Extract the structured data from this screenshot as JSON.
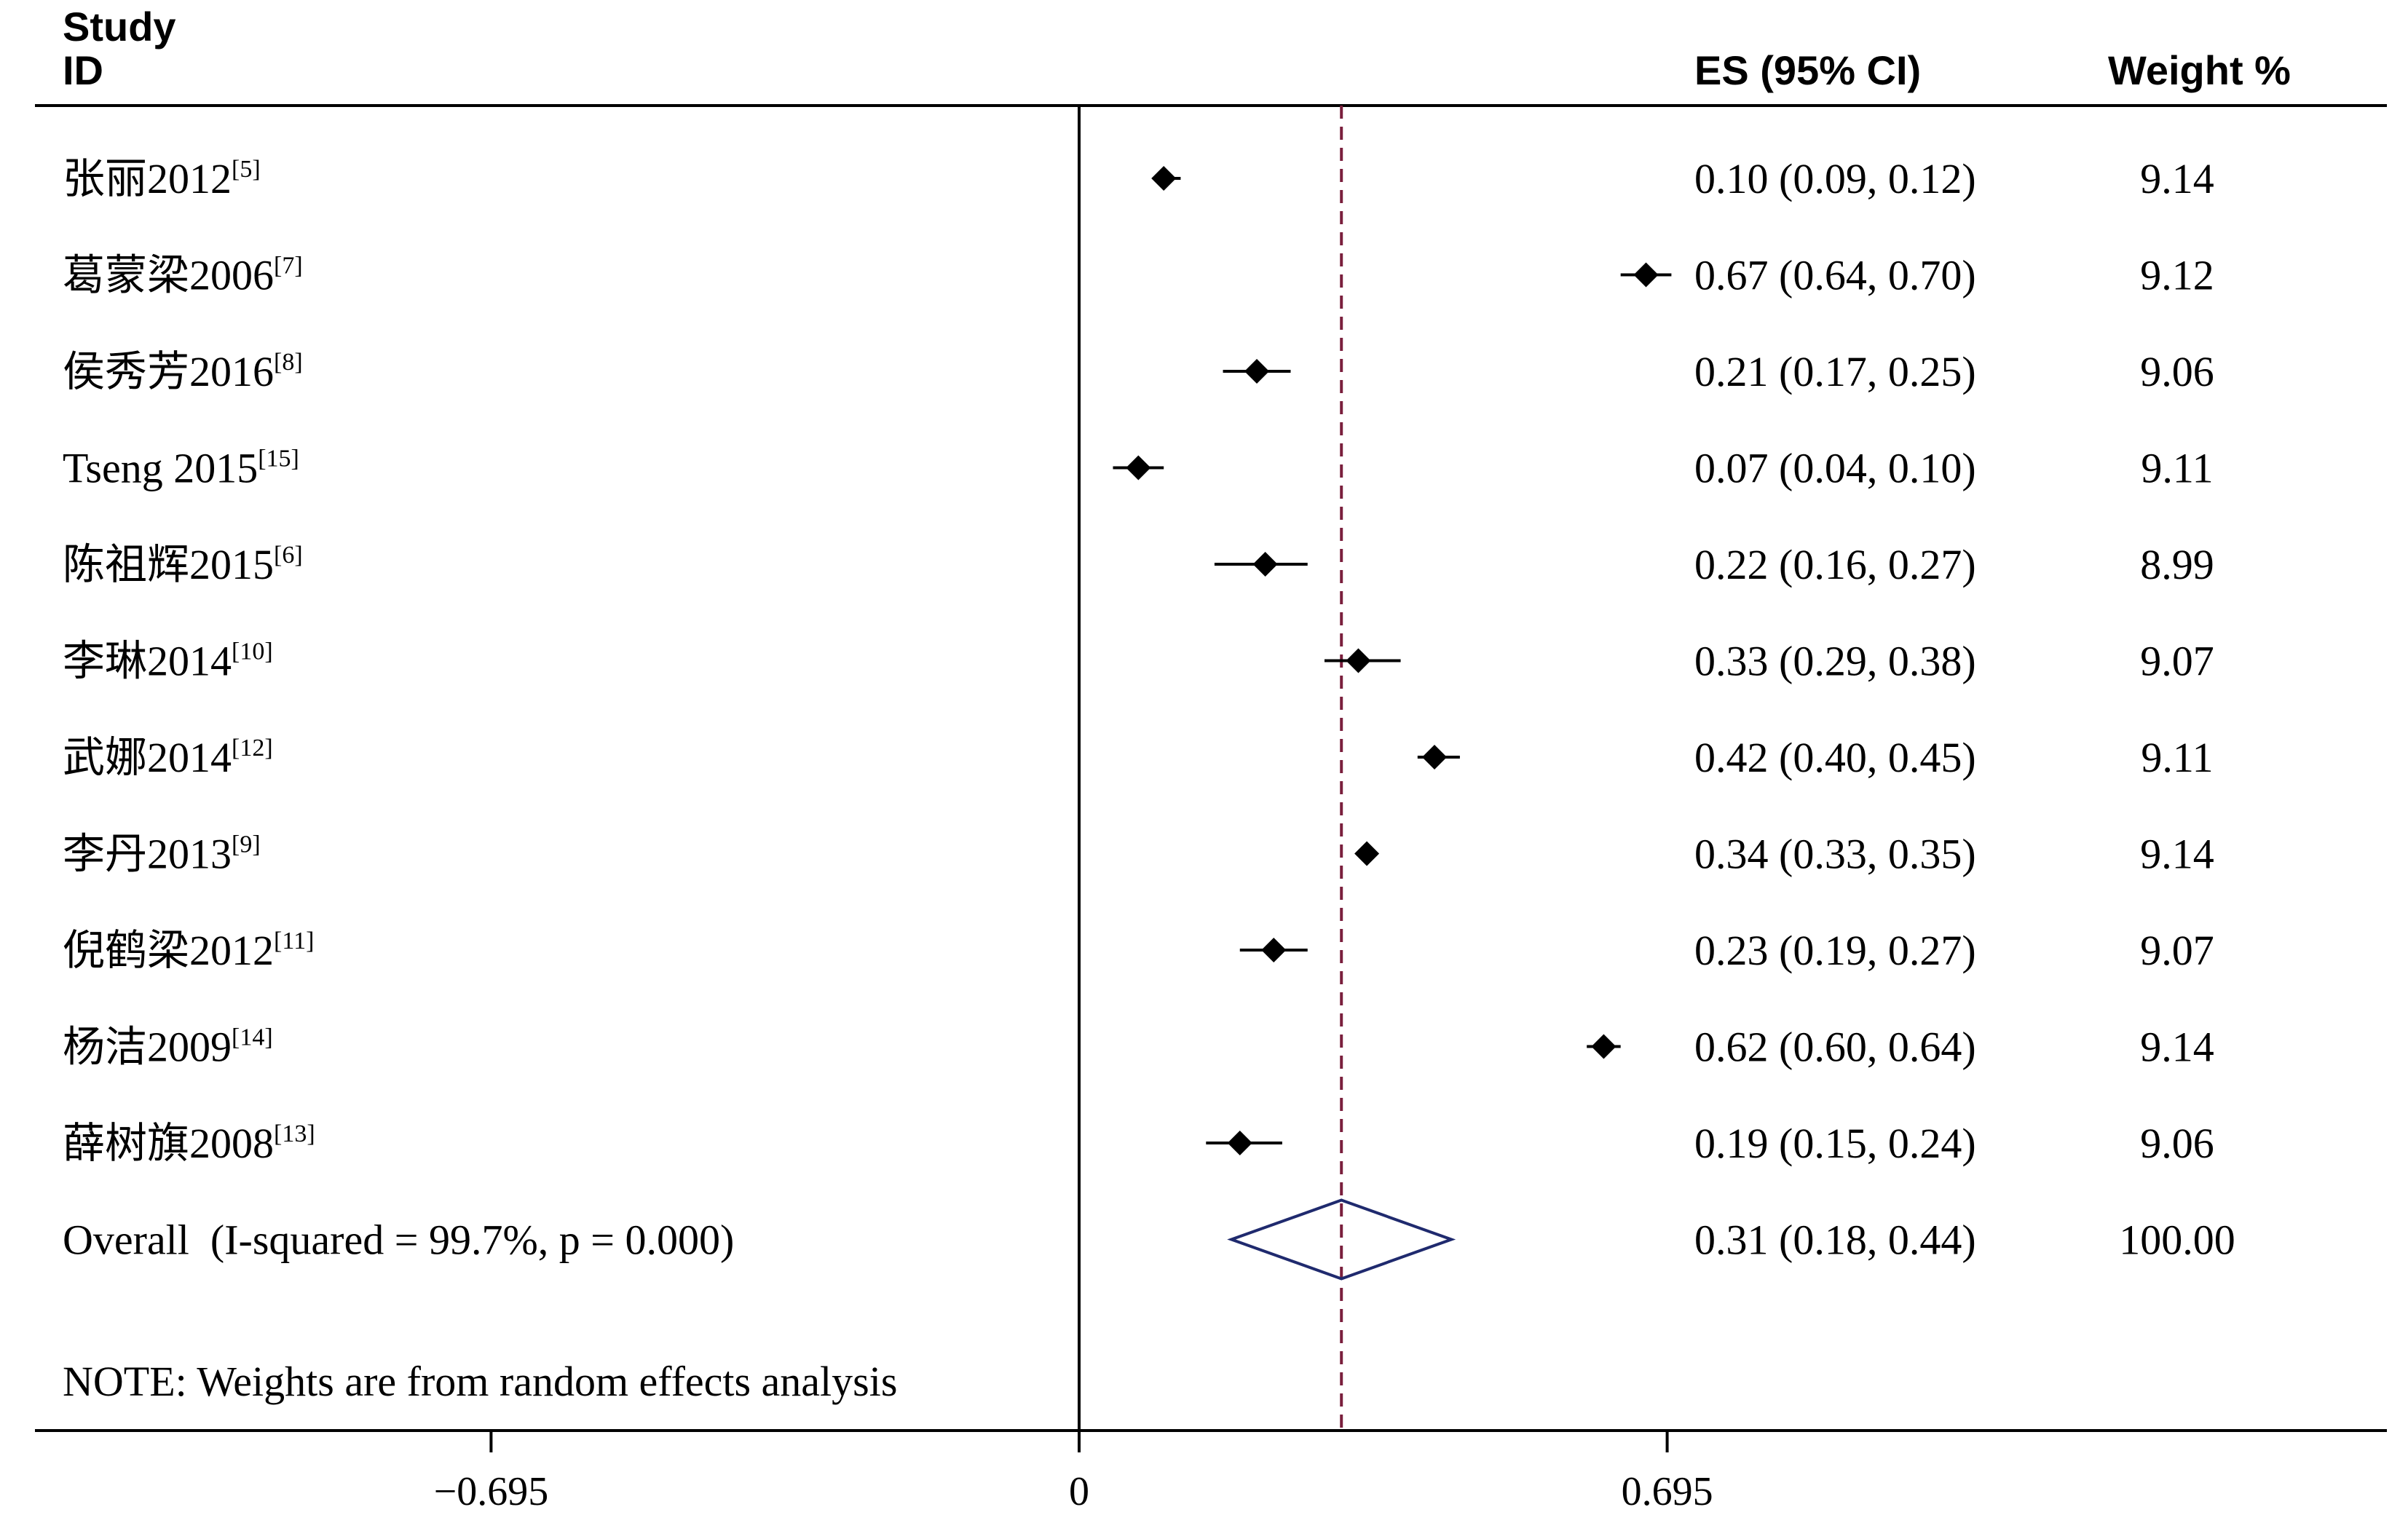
{
  "chart_data": {
    "type": "forest",
    "headers": {
      "study_line1": "Study",
      "study_line2": "ID",
      "es": "ES (95% CI)",
      "weight": "Weight %"
    },
    "studies": [
      {
        "name": "张丽2012",
        "ref": "[5]",
        "es": 0.1,
        "lo": 0.09,
        "hi": 0.12,
        "es_text": "0.10 (0.09, 0.12)",
        "weight": "9.14"
      },
      {
        "name": "葛蒙梁2006",
        "ref": "[7]",
        "es": 0.67,
        "lo": 0.64,
        "hi": 0.7,
        "es_text": "0.67 (0.64, 0.70)",
        "weight": "9.12"
      },
      {
        "name": "侯秀芳2016",
        "ref": "[8]",
        "es": 0.21,
        "lo": 0.17,
        "hi": 0.25,
        "es_text": "0.21 (0.17, 0.25)",
        "weight": "9.06"
      },
      {
        "name": "Tseng 2015",
        "ref": "[15]",
        "es": 0.07,
        "lo": 0.04,
        "hi": 0.1,
        "es_text": "0.07 (0.04, 0.10)",
        "weight": "9.11"
      },
      {
        "name": "陈祖辉2015",
        "ref": "[6]",
        "es": 0.22,
        "lo": 0.16,
        "hi": 0.27,
        "es_text": "0.22 (0.16, 0.27)",
        "weight": "8.99"
      },
      {
        "name": "李琳2014",
        "ref": "[10]",
        "es": 0.33,
        "lo": 0.29,
        "hi": 0.38,
        "es_text": "0.33 (0.29, 0.38)",
        "weight": "9.07"
      },
      {
        "name": "武娜2014",
        "ref": "[12]",
        "es": 0.42,
        "lo": 0.4,
        "hi": 0.45,
        "es_text": "0.42 (0.40, 0.45)",
        "weight": "9.11"
      },
      {
        "name": "李丹2013",
        "ref": "[9]",
        "es": 0.34,
        "lo": 0.33,
        "hi": 0.35,
        "es_text": "0.34 (0.33, 0.35)",
        "weight": "9.14"
      },
      {
        "name": "倪鹤梁2012",
        "ref": "[11]",
        "es": 0.23,
        "lo": 0.19,
        "hi": 0.27,
        "es_text": "0.23 (0.19, 0.27)",
        "weight": "9.07"
      },
      {
        "name": "杨洁2009",
        "ref": "[14]",
        "es": 0.62,
        "lo": 0.6,
        "hi": 0.64,
        "es_text": "0.62 (0.60, 0.64)",
        "weight": "9.14"
      },
      {
        "name": "薛树旗2008",
        "ref": "[13]",
        "es": 0.19,
        "lo": 0.15,
        "hi": 0.24,
        "es_text": "0.19 (0.15, 0.24)",
        "weight": "9.06"
      }
    ],
    "overall": {
      "label": "Overall  (I-squared = 99.7%, p = 0.000)",
      "es": 0.31,
      "lo": 0.18,
      "hi": 0.44,
      "es_text": "0.31 (0.18, 0.44)",
      "weight": "100.00"
    },
    "note": "NOTE: Weights are from random effects analysis",
    "xaxis": {
      "ticks": [
        -0.695,
        0,
        0.695
      ],
      "tick_labels": [
        "−0.695",
        "0",
        "0.695"
      ],
      "range": [
        -1.2,
        1.55
      ]
    },
    "reference_line": 0,
    "colors": {
      "point": "#000000",
      "ci_line": "#000000",
      "overall_line": "#7a1f3d",
      "diamond": "#1f2a6e",
      "axis": "#000000"
    }
  }
}
